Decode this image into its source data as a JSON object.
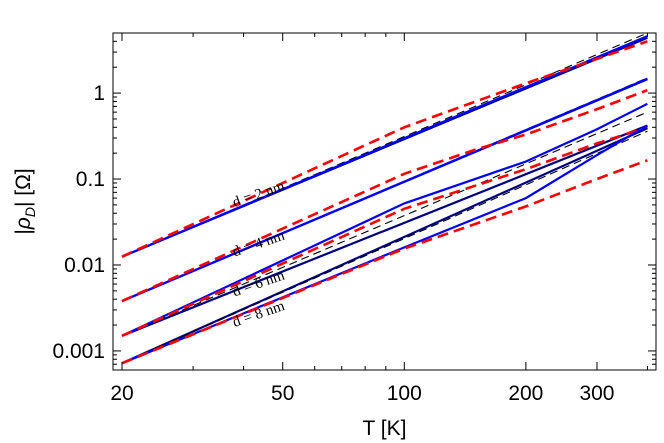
{
  "chart_data": {
    "type": "line",
    "title": "",
    "xlabel": "T  [K]",
    "ylabel": "|ρ_D|  [Ω]",
    "x_scale": "log",
    "y_scale": "log",
    "xlim": [
      19,
      420
    ],
    "ylim": [
      0.0006,
      5
    ],
    "x_ticks": [
      20,
      50,
      100,
      200,
      300
    ],
    "x_tick_labels": [
      "20",
      "50",
      "100",
      "200",
      "300"
    ],
    "y_ticks": [
      0.001,
      0.01,
      0.1,
      1
    ],
    "y_tick_labels": [
      "0.001",
      "0.01",
      "0.1",
      "1"
    ],
    "grid": false,
    "legend": "none",
    "annotations": [
      {
        "text": "d = 2 nm",
        "x": 38,
        "y": 0.047
      },
      {
        "text": "d = 4 nm",
        "x": 38,
        "y": 0.0125
      },
      {
        "text": "d = 6 nm",
        "x": 38,
        "y": 0.0043
      },
      {
        "text": "d = 8 nm",
        "x": 38,
        "y": 0.0019
      }
    ],
    "series": [
      {
        "group": "d = 2 nm",
        "style": "solid",
        "color": "#000080",
        "x": [
          20,
          400
        ],
        "y": [
          0.0125,
          4.4
        ]
      },
      {
        "group": "d = 2 nm",
        "style": "dashed-thin",
        "color": "#000000",
        "x": [
          20,
          400
        ],
        "y": [
          0.0125,
          5.0
        ]
      },
      {
        "group": "d = 2 nm",
        "style": "solid",
        "color": "#0000ff",
        "x": [
          20,
          400
        ],
        "y": [
          0.0125,
          4.6
        ]
      },
      {
        "group": "d = 2 nm",
        "style": "dashed",
        "color": "#ff0000",
        "x": [
          20,
          100,
          200,
          300,
          400
        ],
        "y": [
          0.0125,
          0.4,
          1.3,
          2.5,
          4.0
        ]
      },
      {
        "group": "d = 4 nm",
        "style": "solid",
        "color": "#000080",
        "x": [
          20,
          400
        ],
        "y": [
          0.0038,
          1.45
        ]
      },
      {
        "group": "d = 4 nm",
        "style": "dashed-thin",
        "color": "#000000",
        "x": [
          20,
          400
        ],
        "y": [
          0.0038,
          1.5
        ]
      },
      {
        "group": "d = 4 nm",
        "style": "solid",
        "color": "#0000ff",
        "x": [
          20,
          400
        ],
        "y": [
          0.0038,
          1.47
        ]
      },
      {
        "group": "d = 4 nm",
        "style": "dashed",
        "color": "#ff0000",
        "x": [
          20,
          100,
          150,
          200,
          300,
          400
        ],
        "y": [
          0.0038,
          0.115,
          0.22,
          0.33,
          0.65,
          1.08
        ]
      },
      {
        "group": "d = 6 nm",
        "style": "solid",
        "color": "#000080",
        "x": [
          20,
          400
        ],
        "y": [
          0.0015,
          0.42
        ]
      },
      {
        "group": "d = 6 nm",
        "style": "dashed-thin",
        "color": "#000000",
        "x": [
          20,
          400
        ],
        "y": [
          0.0015,
          0.6
        ]
      },
      {
        "group": "d = 6 nm",
        "style": "solid",
        "color": "#0000ff",
        "x": [
          20,
          100,
          200,
          300,
          400
        ],
        "y": [
          0.0015,
          0.052,
          0.16,
          0.38,
          0.75
        ]
      },
      {
        "group": "d = 6 nm",
        "style": "dashed",
        "color": "#ff0000",
        "x": [
          20,
          100,
          200,
          300,
          400
        ],
        "y": [
          0.0015,
          0.045,
          0.13,
          0.26,
          0.4
        ]
      },
      {
        "group": "d = 8 nm",
        "style": "solid",
        "color": "#000080",
        "x": [
          20,
          400
        ],
        "y": [
          0.00072,
          0.39
        ]
      },
      {
        "group": "d = 8 nm",
        "style": "dashed-thin",
        "color": "#000000",
        "x": [
          20,
          400
        ],
        "y": [
          0.00072,
          0.36
        ]
      },
      {
        "group": "d = 8 nm",
        "style": "solid",
        "color": "#0000ff",
        "x": [
          20,
          100,
          200,
          300,
          400
        ],
        "y": [
          0.00072,
          0.016,
          0.06,
          0.19,
          0.42
        ]
      },
      {
        "group": "d = 8 nm",
        "style": "dashed",
        "color": "#ff0000",
        "x": [
          20,
          100,
          200,
          300,
          400
        ],
        "y": [
          0.00072,
          0.0155,
          0.048,
          0.1,
          0.165
        ]
      }
    ]
  }
}
